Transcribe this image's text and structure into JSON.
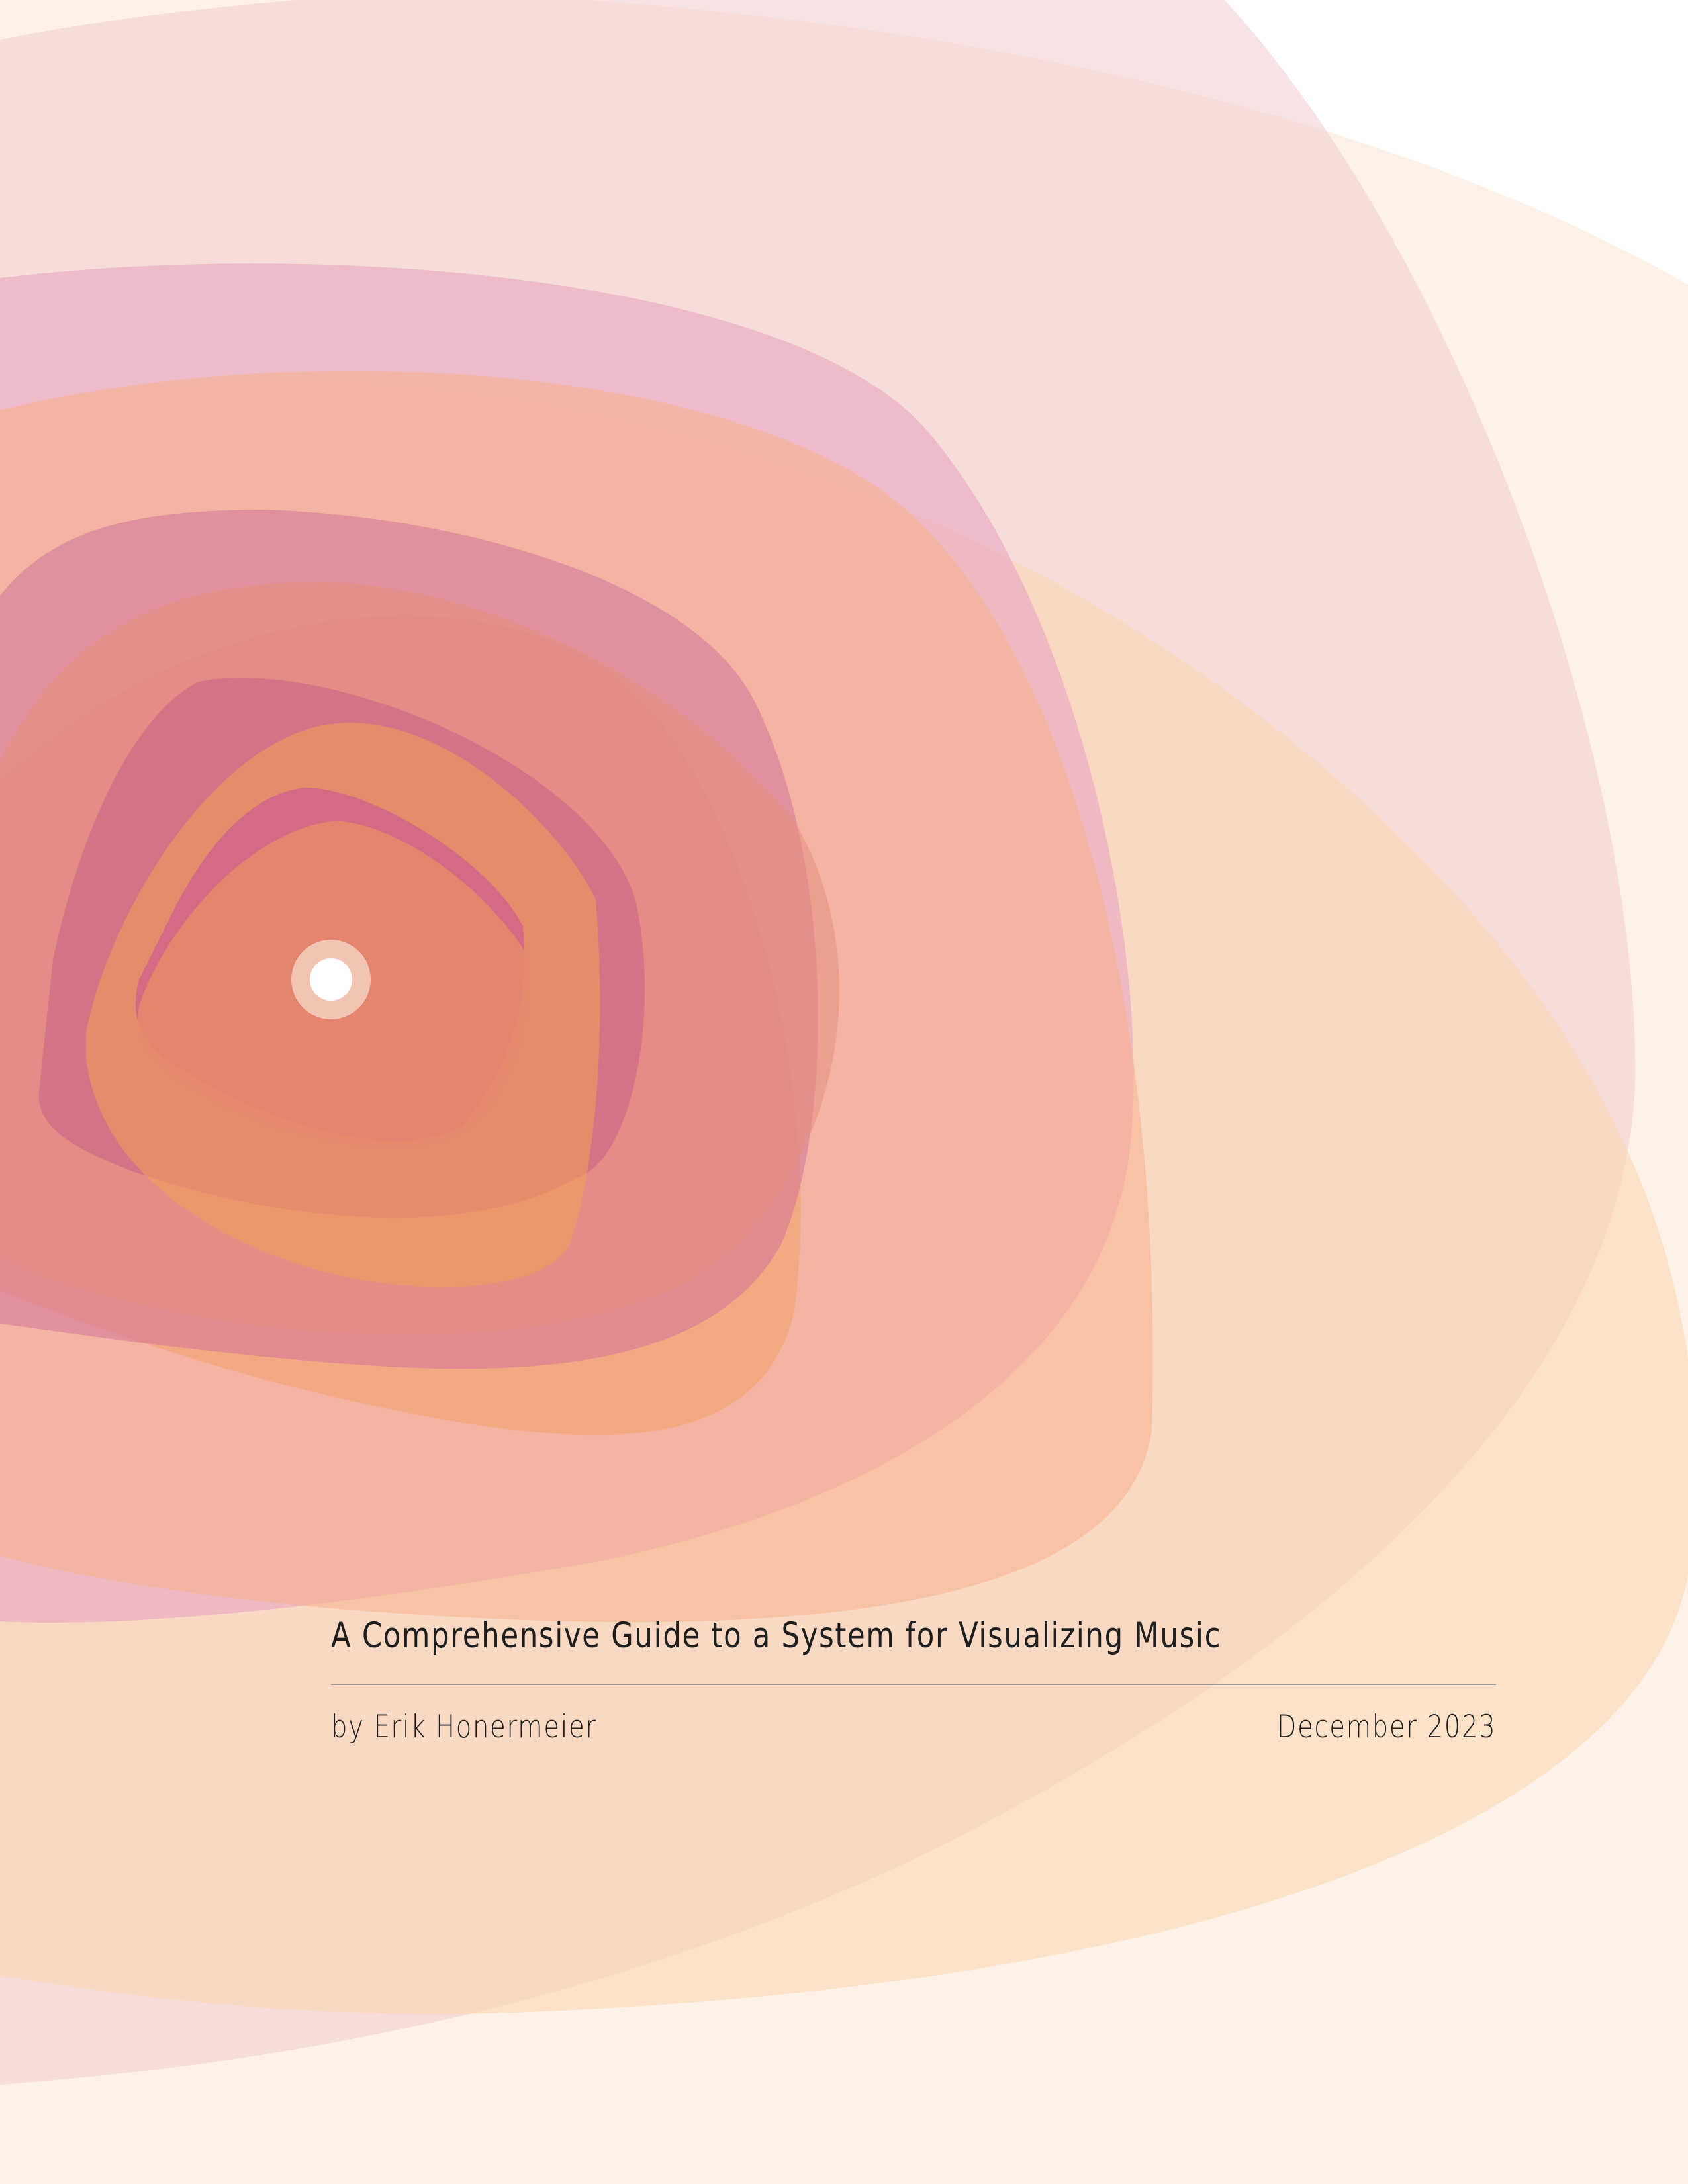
{
  "cover": {
    "title": "A Comprehensive Guide to a System for Visualizing Music",
    "author": "by Erik Honermeier",
    "date": "December 2023"
  },
  "artwork": {
    "description_colors": {
      "lavender": "#f6e8f4",
      "pale_pink": "#f4dcdc",
      "cream": "#fdebe0",
      "pink": "#e7a0bf",
      "peach": "#f7c196",
      "magenta": "#c94f86",
      "orange": "#f2a04a",
      "center_dot_ring": "#f2c4b4",
      "center_dot": "#ffffff"
    }
  }
}
